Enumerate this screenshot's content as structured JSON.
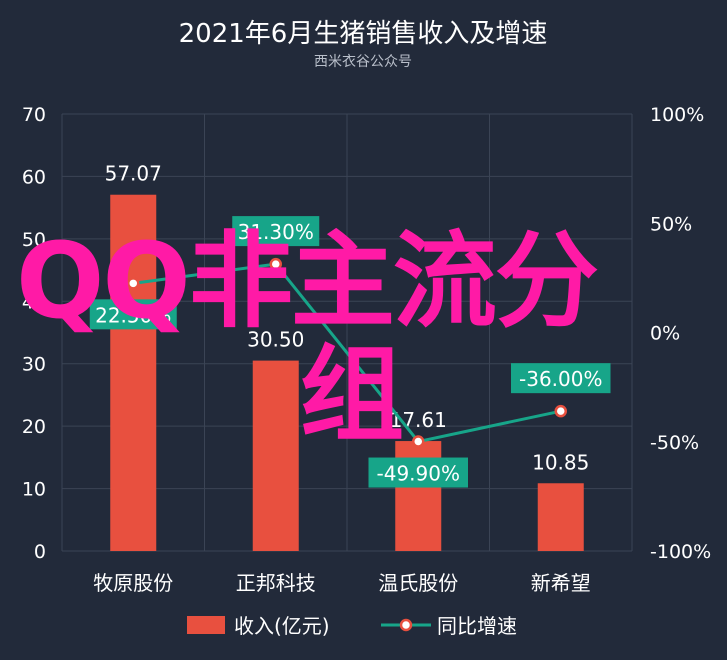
{
  "chart_data": {
    "type": "bar",
    "title": "2021年6月生猪销售收入及增速",
    "subtitle": "西米衣谷公众号",
    "categories": [
      "牧原股份",
      "正邦科技",
      "温氏股份",
      "新希望"
    ],
    "series": [
      {
        "name": "收入(亿元)",
        "type": "bar",
        "axis": "left",
        "color": "#e8503f",
        "values": [
          57.07,
          30.5,
          17.61,
          10.85
        ],
        "labels": [
          "57.07",
          "30.50",
          "17.61",
          "10.85"
        ]
      },
      {
        "name": "同比增速",
        "type": "line",
        "axis": "right",
        "color": "#17a589",
        "values": [
          22.5,
          31.3,
          -49.9,
          -36.0
        ],
        "labels": [
          "22.50%",
          "31.30%",
          "-49.90%",
          "-36.00%"
        ]
      }
    ],
    "y_left": {
      "min": 0,
      "max": 70,
      "ticks": [
        "0",
        "10",
        "20",
        "30",
        "40",
        "50",
        "60",
        "70"
      ]
    },
    "y_right": {
      "min": -100,
      "max": 100,
      "ticks": [
        "-100%",
        "-50%",
        "0%",
        "50%",
        "100%"
      ]
    },
    "grid": true,
    "legend": "bottom-center",
    "background": "#222a3a",
    "grid_color": "#3b4455"
  },
  "watermark": {
    "line1": "QQ非主流分",
    "line2": "组",
    "color": "#ff1aa6"
  }
}
